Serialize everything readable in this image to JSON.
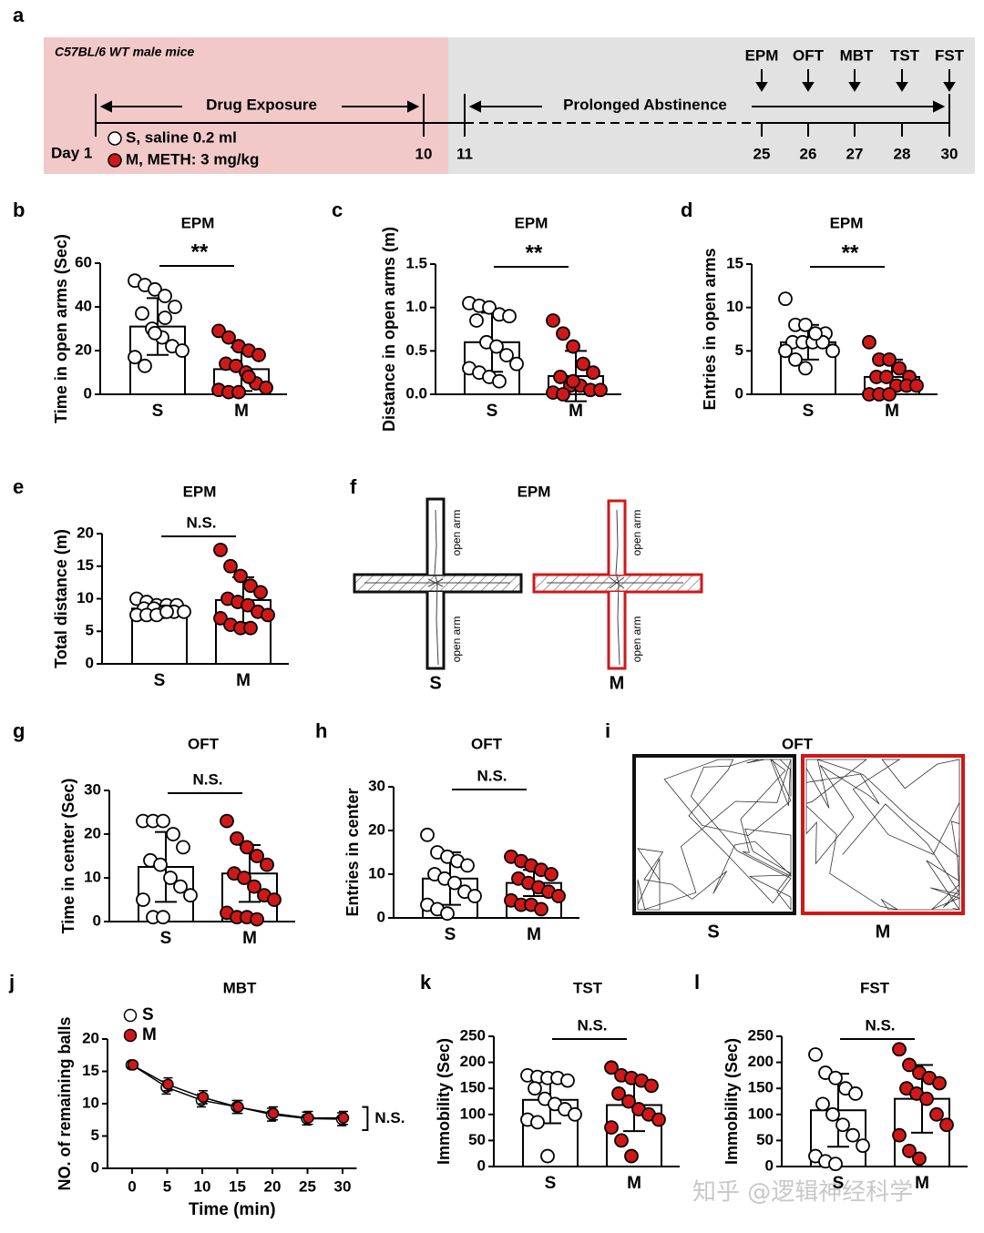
{
  "panel_labels": {
    "a": "a",
    "f": "f",
    "i": "i"
  },
  "timeline": {
    "strain": "C57BL/6 WT male mice",
    "phase_1": "Drug Exposure",
    "phase_2": "Prolonged Abstinence",
    "legend": [
      "S, saline 0.2 ml",
      "M, METH: 3 mg/kg"
    ],
    "day_labels": [
      "Day 1",
      "10",
      "11",
      "25",
      "26",
      "27",
      "28",
      "30"
    ],
    "tests": [
      "EPM",
      "OFT",
      "MBT",
      "TST",
      "FST"
    ]
  },
  "epm_maze": {
    "title": "EPM",
    "open_arm_labels": [
      "open arm",
      "open arm",
      "open arm",
      "open arm"
    ],
    "groups": [
      "S",
      "M"
    ]
  },
  "oft_trace": {
    "title": "OFT",
    "groups": [
      "S",
      "M"
    ]
  },
  "watermark": "知乎 @逻辑神经科学",
  "chart_data": [
    {
      "type": "bar",
      "panel": "b",
      "title": "EPM",
      "ylabel": "Time in open arms (Sec)",
      "categories": [
        "S",
        "M"
      ],
      "values": [
        31,
        11.5
      ],
      "errors": [
        13,
        10
      ],
      "point_colors": [
        "#ffffff",
        "#d01818"
      ],
      "points": [
        [
          52,
          50,
          48,
          45,
          40,
          37,
          30,
          26,
          22,
          20,
          17,
          13,
          28,
          35
        ],
        [
          29,
          26,
          22,
          20,
          18,
          14,
          13,
          10,
          5,
          3,
          2,
          1,
          1,
          8
        ]
      ],
      "ylim": [
        0,
        60
      ],
      "yticks": [
        0,
        20,
        40,
        60
      ],
      "annotation": "**"
    },
    {
      "type": "bar",
      "panel": "c",
      "title": "EPM",
      "ylabel": "Distance in open arms (m)",
      "categories": [
        "S",
        "M"
      ],
      "values": [
        0.6,
        0.21
      ],
      "errors": [
        0.34,
        0.29
      ],
      "point_colors": [
        "#ffffff",
        "#d01818"
      ],
      "points": [
        [
          1.05,
          1.02,
          1.0,
          0.92,
          0.9,
          0.85,
          0.6,
          0.55,
          0.45,
          0.35,
          0.3,
          0.25,
          0.2,
          0.15
        ],
        [
          0.85,
          0.7,
          0.55,
          0.35,
          0.25,
          0.2,
          0.1,
          0.1,
          0.05,
          0.05,
          0.02,
          0.0,
          0.15
        ]
      ],
      "ylim": [
        0,
        1.5
      ],
      "yticks": [
        {
          "value": 0,
          "label": "0.0"
        },
        {
          "value": 0.5,
          "label": "0.5"
        },
        {
          "value": 1,
          "label": "1.0"
        },
        {
          "value": 1.5,
          "label": "1.5"
        }
      ],
      "annotation": "**"
    },
    {
      "type": "bar",
      "panel": "d",
      "title": "EPM",
      "ylabel": "Entries in open arms",
      "categories": [
        "S",
        "M"
      ],
      "values": [
        6,
        2
      ],
      "errors": [
        2,
        2
      ],
      "point_colors": [
        "#ffffff",
        "#d01818"
      ],
      "points": [
        [
          11,
          8,
          8,
          7,
          7,
          6,
          6,
          6,
          6,
          5,
          5,
          4,
          3,
          7
        ],
        [
          6,
          4,
          4,
          3,
          2,
          2,
          2,
          1,
          1,
          1,
          0,
          0,
          0,
          3
        ]
      ],
      "ylim": [
        0,
        15
      ],
      "yticks": [
        0,
        5,
        10,
        15
      ],
      "annotation": "**"
    },
    {
      "type": "bar",
      "panel": "e",
      "title": "EPM",
      "ylabel": "Total distance (m)",
      "categories": [
        "S",
        "M"
      ],
      "values": [
        8.5,
        9.8
      ],
      "errors": [
        1,
        3.5
      ],
      "point_colors": [
        "#ffffff",
        "#d01818"
      ],
      "points": [
        [
          10,
          9.5,
          9,
          9,
          9,
          8.5,
          8.5,
          8,
          8,
          8,
          7.5,
          7.5,
          7.5,
          8
        ],
        [
          17.5,
          15,
          13.5,
          12,
          11,
          10,
          9.5,
          9,
          8,
          7.5,
          7,
          6,
          5.5,
          5.5
        ]
      ],
      "ylim": [
        0,
        20
      ],
      "yticks": [
        0,
        5,
        10,
        15,
        20
      ],
      "annotation": "N.S."
    },
    {
      "type": "bar",
      "panel": "g",
      "title": "OFT",
      "ylabel": "Time in center (Sec)",
      "categories": [
        "S",
        "M"
      ],
      "values": [
        12.5,
        11
      ],
      "errors": [
        8,
        6.5
      ],
      "point_colors": [
        "#ffffff",
        "#d01818"
      ],
      "points": [
        [
          23,
          23,
          23,
          20,
          17,
          14,
          13,
          10,
          8,
          6,
          5,
          1,
          1
        ],
        [
          23,
          19,
          17,
          15,
          13,
          11,
          10,
          8,
          6,
          5,
          2,
          1,
          1,
          0.5
        ]
      ],
      "ylim": [
        0,
        30
      ],
      "yticks": [
        0,
        10,
        20,
        30
      ],
      "annotation": "N.S."
    },
    {
      "type": "bar",
      "panel": "h",
      "title": "OFT",
      "ylabel": "Entries in center",
      "categories": [
        "S",
        "M"
      ],
      "values": [
        9,
        8
      ],
      "errors": [
        6,
        3
      ],
      "point_colors": [
        "#ffffff",
        "#d01818"
      ],
      "points": [
        [
          19,
          15,
          14,
          13,
          12,
          10,
          9,
          8,
          6,
          5,
          3,
          2,
          1
        ],
        [
          14,
          13,
          12,
          11,
          10,
          9,
          8,
          7,
          6,
          5,
          4,
          3,
          3,
          2
        ]
      ],
      "ylim": [
        0,
        30
      ],
      "yticks": [
        0,
        10,
        20,
        30
      ],
      "annotation": "N.S."
    },
    {
      "type": "line",
      "panel": "j",
      "title": "MBT",
      "xlabel": "Time (min)",
      "ylabel": "NO. of remaining balls",
      "x": [
        0,
        5,
        10,
        15,
        20,
        25,
        30
      ],
      "xlim": [
        -3.5,
        32
      ],
      "xticks": [
        0,
        5,
        10,
        15,
        20,
        25,
        30
      ],
      "ylim": [
        0,
        20
      ],
      "yticks": [
        0,
        5,
        10,
        15,
        20
      ],
      "annotation": "N.S.",
      "series": [
        {
          "name": "S",
          "color": "#ffffff",
          "values": [
            16,
            12.5,
            10.5,
            9.5,
            8.3,
            7.7,
            7.6
          ],
          "errors": [
            0.5,
            1,
            1,
            1,
            1,
            1,
            1
          ]
        },
        {
          "name": "M",
          "color": "#d01818",
          "values": [
            16,
            13,
            11,
            9.5,
            8.5,
            7.8,
            7.8
          ],
          "errors": [
            0.5,
            1,
            1,
            1,
            1,
            1,
            1
          ]
        }
      ]
    },
    {
      "type": "bar",
      "panel": "k",
      "title": "TST",
      "ylabel": "Immobility (Sec)",
      "categories": [
        "S",
        "M"
      ],
      "values": [
        128,
        118
      ],
      "errors": [
        45,
        50
      ],
      "point_colors": [
        "#ffffff",
        "#d01818"
      ],
      "points": [
        [
          175,
          172,
          170,
          170,
          165,
          150,
          130,
          120,
          110,
          100,
          90,
          85,
          20
        ],
        [
          190,
          175,
          170,
          165,
          155,
          140,
          125,
          110,
          100,
          90,
          75,
          50,
          20
        ]
      ],
      "ylim": [
        0,
        250
      ],
      "yticks": [
        0,
        50,
        100,
        150,
        200,
        250
      ],
      "annotation": "N.S."
    },
    {
      "type": "bar",
      "panel": "l",
      "title": "FST",
      "ylabel": "Immobility (Sec)",
      "categories": [
        "S",
        "M"
      ],
      "values": [
        108,
        130
      ],
      "errors": [
        70,
        65
      ],
      "point_colors": [
        "#ffffff",
        "#d01818"
      ],
      "points": [
        [
          215,
          180,
          170,
          150,
          140,
          120,
          100,
          80,
          60,
          40,
          20,
          10,
          5
        ],
        [
          225,
          195,
          180,
          170,
          160,
          150,
          140,
          130,
          100,
          80,
          60,
          30,
          15
        ]
      ],
      "ylim": [
        0,
        250
      ],
      "yticks": [
        0,
        50,
        100,
        150,
        200,
        250
      ],
      "annotation": "N.S."
    }
  ]
}
